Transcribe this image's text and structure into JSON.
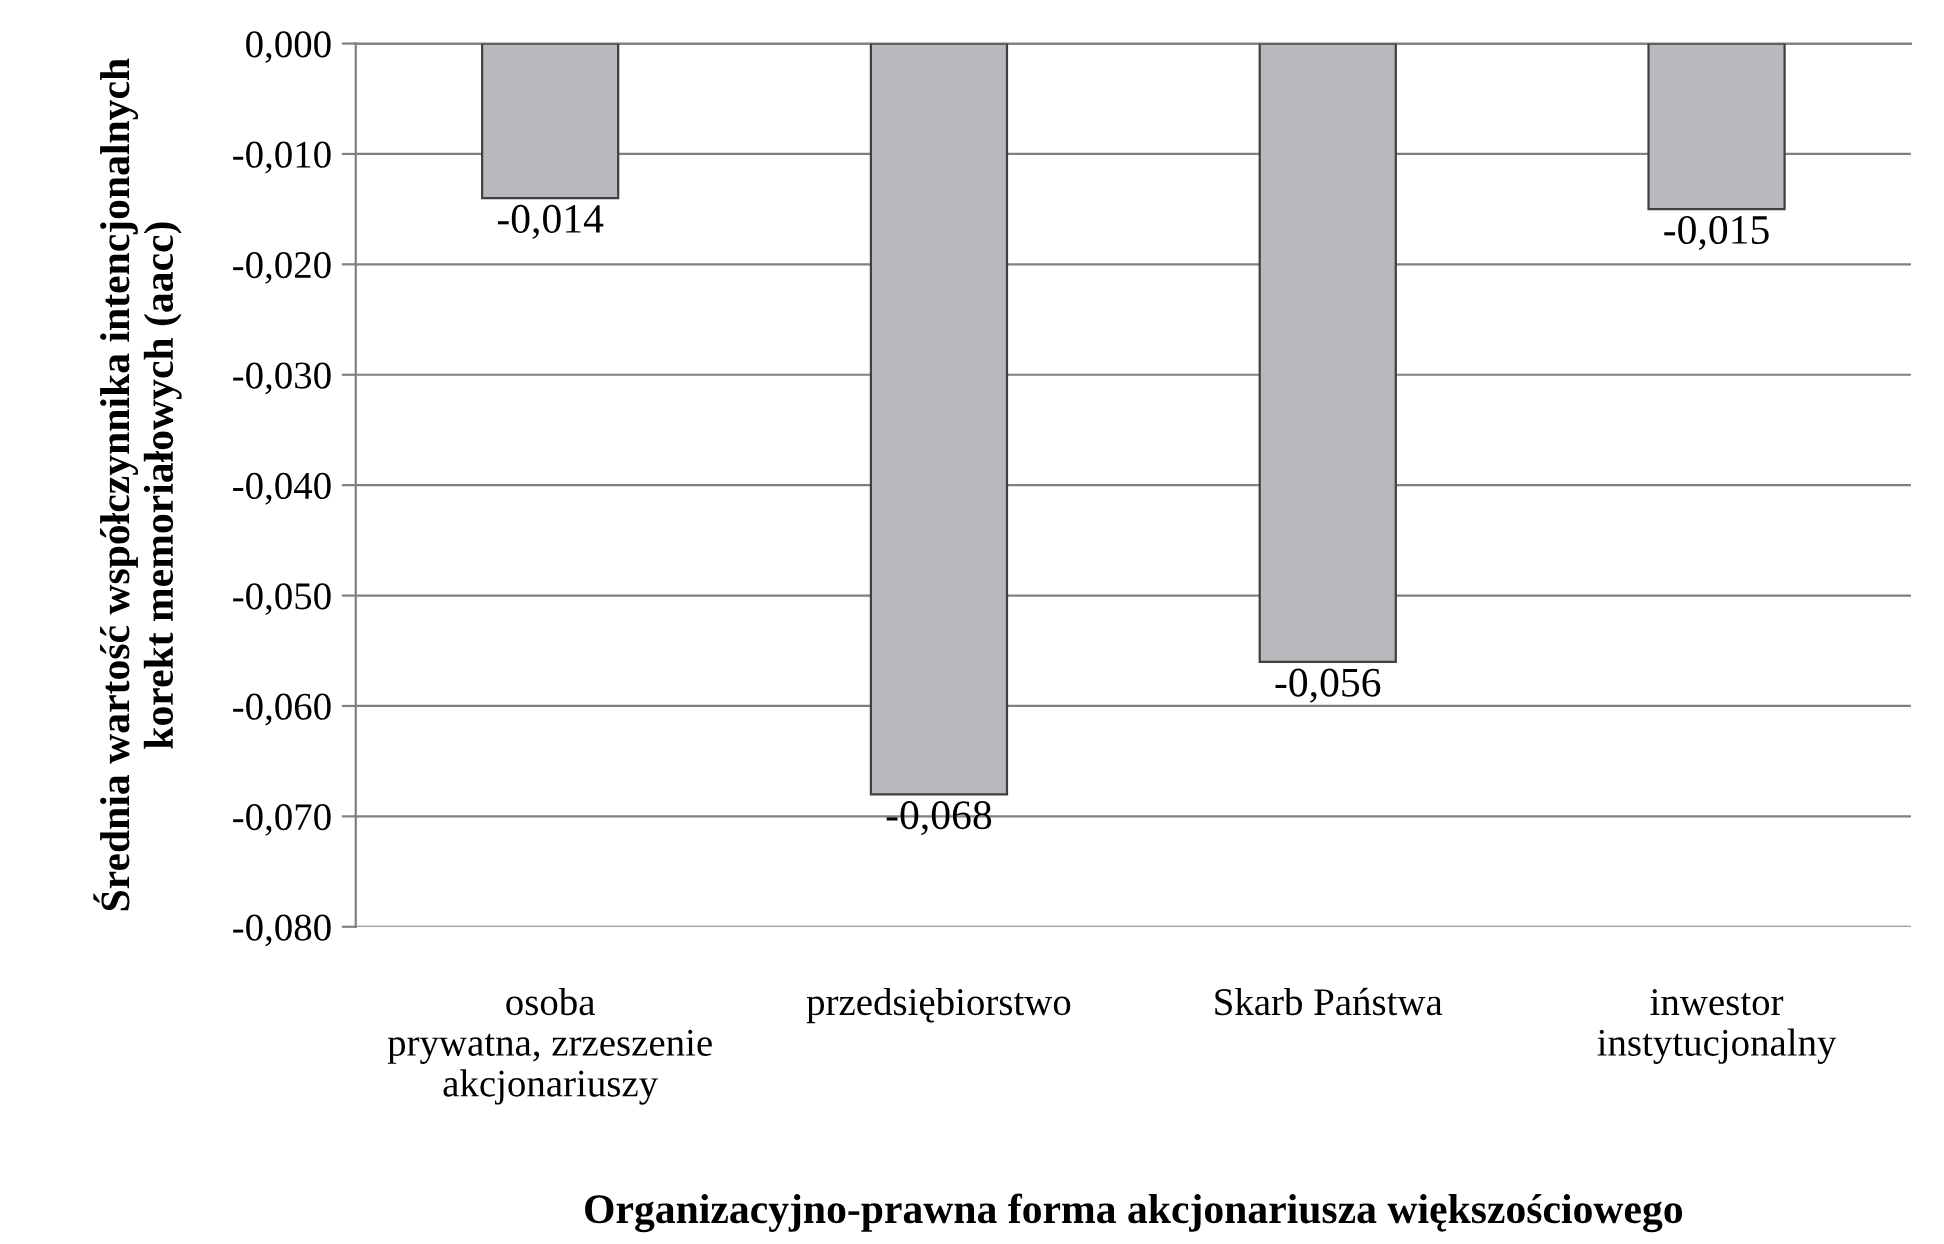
{
  "chart_data": {
    "type": "bar",
    "xlabel": "Organizacyjno-prawna forma akcjonariusza większościowego",
    "ylabel": "Średnia wartość współczynnika intencjonalnych\nkorekt memoriałowych (aacc)",
    "categories": [
      "osoba\nprywatna, zrzeszenie\nakcjonariuszy",
      "przedsiębiorstwo",
      "Skarb Państwa",
      "inwestor\ninstytucjonalny"
    ],
    "values": [
      -0.014,
      -0.068,
      -0.056,
      -0.015
    ],
    "value_labels": [
      "-0,014",
      "-0,068",
      "-0,056",
      "-0,015"
    ],
    "color": "#b9b9bd",
    "ylim": [
      -0.08,
      0
    ],
    "yticks": [
      {
        "value": 0,
        "label": "0,000"
      },
      {
        "value": -0.01,
        "label": "-0,010"
      },
      {
        "value": -0.02,
        "label": "-0,020"
      },
      {
        "value": -0.03,
        "label": "-0,030"
      },
      {
        "value": -0.04,
        "label": "-0,040"
      },
      {
        "value": -0.05,
        "label": "-0,050"
      },
      {
        "value": -0.06,
        "label": "-0,060"
      },
      {
        "value": -0.07,
        "label": "-0,070"
      },
      {
        "value": -0.08,
        "label": "-0,080"
      }
    ],
    "grid": "y",
    "legend": false
  }
}
